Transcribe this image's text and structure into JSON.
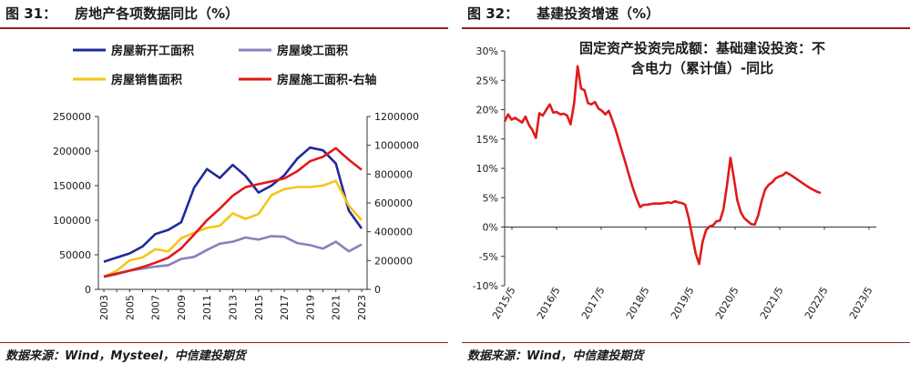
{
  "left": {
    "fig_num": "图 31：",
    "fig_title": "房地产各项数据同比（%）",
    "source": "数据来源：Wind，Mysteel，中信建投期货"
  },
  "right": {
    "fig_num": "图 32：",
    "fig_title": "基建投资增速（%）",
    "source": "数据来源：Wind，中信建投期货"
  },
  "chart_data": [
    {
      "type": "line",
      "title": "",
      "x": [
        "2003",
        "2004",
        "2005",
        "2006",
        "2007",
        "2008",
        "2009",
        "2010",
        "2011",
        "2012",
        "2013",
        "2014",
        "2015",
        "2016",
        "2017",
        "2018",
        "2019",
        "2020",
        "2021",
        "2022",
        "2023"
      ],
      "xticks": [
        "2003",
        "2005",
        "2007",
        "2009",
        "2011",
        "2013",
        "2015",
        "2017",
        "2019",
        "2021",
        "2023"
      ],
      "ylim": [
        0,
        250000
      ],
      "yticks": [
        0,
        50000,
        100000,
        150000,
        200000,
        250000
      ],
      "y2lim": [
        0,
        1200000
      ],
      "y2ticks": [
        0,
        200000,
        400000,
        600000,
        800000,
        1000000,
        1200000
      ],
      "legend_position": "top",
      "grid": false,
      "series": [
        {
          "name": "房屋新开工面积",
          "color": "#1f2a9c",
          "axis": "left",
          "values": [
            40000,
            46000,
            52000,
            62000,
            80000,
            86000,
            97000,
            147000,
            174000,
            161000,
            180000,
            164000,
            140000,
            150000,
            165000,
            189000,
            205000,
            201000,
            182000,
            114000,
            88000
          ]
        },
        {
          "name": "房屋竣工面积",
          "color": "#8b7fbf",
          "axis": "left",
          "values": [
            18000,
            22000,
            27000,
            30000,
            33000,
            35000,
            44000,
            47000,
            57000,
            66000,
            69000,
            75000,
            72000,
            77000,
            76000,
            67000,
            64000,
            59000,
            69000,
            55000,
            65000
          ]
        },
        {
          "name": "房屋销售面积",
          "color": "#f5c518",
          "axis": "left",
          "values": [
            18000,
            27000,
            42000,
            46000,
            58000,
            55000,
            74000,
            82000,
            89000,
            92000,
            110000,
            102000,
            109000,
            136000,
            145000,
            148000,
            148000,
            150000,
            157000,
            121000,
            100000
          ]
        },
        {
          "name": "房屋施工面积-右轴",
          "color": "#e01a1a",
          "axis": "right",
          "values": [
            90000,
            110000,
            130000,
            155000,
            185000,
            220000,
            285000,
            380000,
            480000,
            560000,
            650000,
            710000,
            730000,
            750000,
            770000,
            820000,
            890000,
            920000,
            980000,
            900000,
            830000
          ]
        }
      ]
    },
    {
      "type": "line",
      "title": "固定资产投资完成额：基础建设投资：不含电力（累计值）-同比",
      "title_lines": [
        "固定资产投资完成额：基础建设投资：不",
        "含电力（累计值）-同比"
      ],
      "xticks": [
        "2015/5",
        "2016/5",
        "2017/5",
        "2018/5",
        "2019/5",
        "2020/5",
        "2021/5",
        "2022/5",
        "2023/5"
      ],
      "x_range": [
        0,
        107
      ],
      "ylim": [
        -10,
        30
      ],
      "yticks": [
        -10,
        -5,
        0,
        5,
        10,
        15,
        20,
        25,
        30
      ],
      "y_format": "percent",
      "grid": false,
      "series": [
        {
          "name": "",
          "color": "#e01a1a",
          "points": [
            [
              0,
              18
            ],
            [
              1,
              19.2
            ],
            [
              2,
              18.3
            ],
            [
              3,
              18.6
            ],
            [
              4,
              18.2
            ],
            [
              5,
              17.8
            ],
            [
              6,
              18.8
            ],
            [
              7,
              17.4
            ],
            [
              8,
              16.5
            ],
            [
              9,
              15.2
            ],
            [
              10,
              19.4
            ],
            [
              11,
              19
            ],
            [
              12,
              20
            ],
            [
              13,
              20.9
            ],
            [
              14,
              19.5
            ],
            [
              15,
              19.6
            ],
            [
              16,
              19.2
            ],
            [
              17,
              19.3
            ],
            [
              18,
              19
            ],
            [
              19,
              17.5
            ],
            [
              20,
              21.1
            ],
            [
              21,
              27.4
            ],
            [
              22,
              23.6
            ],
            [
              23,
              23.3
            ],
            [
              24,
              21.1
            ],
            [
              25,
              20.9
            ],
            [
              26,
              21.3
            ],
            [
              27,
              20.2
            ],
            [
              28,
              19.8
            ],
            [
              29,
              19.2
            ],
            [
              30,
              19.8
            ],
            [
              31,
              18.2
            ],
            [
              32,
              16.5
            ],
            [
              33,
              14.5
            ],
            [
              34,
              12.5
            ],
            [
              35,
              10.5
            ],
            [
              36,
              8.4
            ],
            [
              37,
              6.5
            ],
            [
              38,
              4.8
            ],
            [
              39,
              3.4
            ],
            [
              40,
              3.8
            ],
            [
              41,
              3.8
            ],
            [
              42,
              3.9
            ],
            [
              43,
              4
            ],
            [
              44,
              4
            ],
            [
              45,
              4
            ],
            [
              46,
              4.1
            ],
            [
              47,
              4.2
            ],
            [
              48,
              4.1
            ],
            [
              49,
              4.4
            ],
            [
              50,
              4.2
            ],
            [
              51,
              4.1
            ],
            [
              52,
              3.8
            ],
            [
              53,
              1.5
            ],
            [
              54,
              -1.5
            ],
            [
              55,
              -4.5
            ],
            [
              56,
              -6.3
            ],
            [
              57,
              -2.5
            ],
            [
              58,
              -0.5
            ],
            [
              59,
              0.1
            ],
            [
              60,
              0.3
            ],
            [
              61,
              1
            ],
            [
              62,
              1.1
            ],
            [
              63,
              3
            ],
            [
              64,
              7
            ],
            [
              65,
              11.8
            ],
            [
              66,
              8.3
            ],
            [
              67,
              4.5
            ],
            [
              68,
              2.5
            ],
            [
              69,
              1.5
            ],
            [
              70,
              1
            ],
            [
              71,
              0.5
            ],
            [
              72,
              0.4
            ],
            [
              73,
              2
            ],
            [
              74,
              4.5
            ],
            [
              75,
              6.4
            ],
            [
              76,
              7.2
            ],
            [
              77,
              7.6
            ],
            [
              78,
              8.3
            ],
            [
              79,
              8.6
            ],
            [
              80,
              8.8
            ],
            [
              81,
              9.3
            ],
            [
              82,
              9
            ],
            [
              83,
              8.6
            ],
            [
              84,
              8.2
            ],
            [
              85,
              7.8
            ],
            [
              86,
              7.4
            ],
            [
              87,
              7
            ],
            [
              88,
              6.6
            ],
            [
              89,
              6.3
            ],
            [
              90,
              6
            ],
            [
              91,
              5.8
            ]
          ]
        }
      ]
    }
  ]
}
